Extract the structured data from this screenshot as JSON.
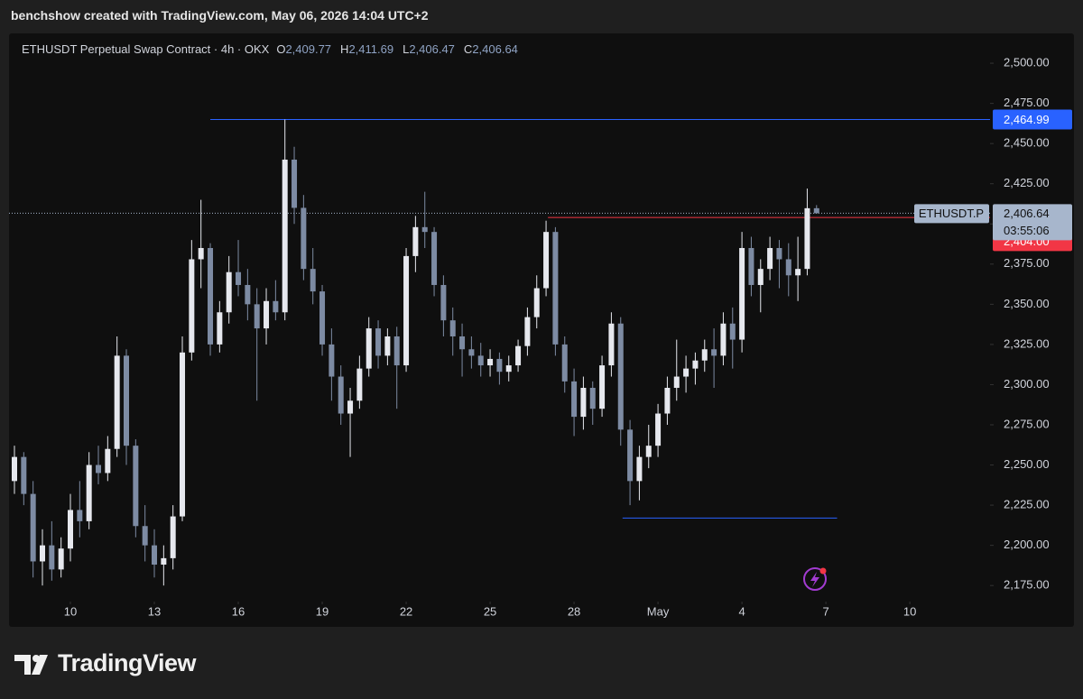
{
  "header": "benchshow created with TradingView.com, May 06, 2026 14:04 UTC+2",
  "brand": "TradingView",
  "chart_data": {
    "type": "candlestick",
    "legend_title": "ETHUSDT Perpetual Swap Contract · 4h · OKX",
    "legend": [
      {
        "key": "O",
        "value": "2,409.77"
      },
      {
        "key": "H",
        "value": "2,411.69"
      },
      {
        "key": "L",
        "value": "2,406.47"
      },
      {
        "key": "C",
        "value": "2,406.64"
      }
    ],
    "up_color": "#e6e8ee",
    "down_color": "#7d8ba3",
    "x": [
      0,
      1,
      2,
      3,
      4,
      5,
      6,
      7,
      8,
      9,
      10,
      11,
      12,
      13,
      14,
      15,
      16,
      17,
      18,
      19,
      20,
      21,
      22,
      23,
      24,
      25,
      26,
      27,
      28,
      29,
      30,
      31,
      32,
      33,
      34,
      35,
      36,
      37,
      38,
      39,
      40,
      41,
      42,
      43,
      44,
      45,
      46,
      47,
      48,
      49,
      50,
      51,
      52,
      53,
      54,
      55,
      56,
      57,
      58,
      59,
      60,
      61,
      62,
      63,
      64,
      65,
      66,
      67,
      68,
      69,
      70,
      71,
      72,
      73,
      74,
      75,
      76,
      77,
      78,
      79,
      80,
      81,
      82,
      83,
      84,
      85,
      86
    ],
    "open": [
      2240,
      2255,
      2232,
      2190,
      2200,
      2185,
      2198,
      2222,
      2215,
      2250,
      2245,
      2260,
      2318,
      2262,
      2212,
      2200,
      2188,
      2192,
      2218,
      2320,
      2378,
      2385,
      2325,
      2345,
      2370,
      2362,
      2350,
      2335,
      2352,
      2345,
      2440,
      2410,
      2372,
      2358,
      2325,
      2305,
      2282,
      2290,
      2310,
      2335,
      2318,
      2330,
      2312,
      2380,
      2398,
      2395,
      2362,
      2340,
      2330,
      2322,
      2318,
      2312,
      2316,
      2308,
      2312,
      2324,
      2342,
      2360,
      2395,
      2325,
      2302,
      2280,
      2298,
      2285,
      2312,
      2338,
      2272,
      2240,
      2255,
      2262,
      2282,
      2298,
      2305,
      2310,
      2315,
      2322,
      2318,
      2338,
      2328,
      2385,
      2362,
      2372,
      2385,
      2378,
      2368,
      2372,
      2409.77
    ],
    "high": [
      2262,
      2258,
      2240,
      2210,
      2215,
      2205,
      2232,
      2240,
      2258,
      2262,
      2268,
      2330,
      2322,
      2266,
      2225,
      2210,
      2200,
      2225,
      2330,
      2390,
      2415,
      2388,
      2352,
      2380,
      2390,
      2372,
      2360,
      2360,
      2365,
      2465,
      2448,
      2418,
      2385,
      2362,
      2335,
      2312,
      2298,
      2318,
      2342,
      2340,
      2335,
      2336,
      2385,
      2405,
      2420,
      2398,
      2368,
      2348,
      2338,
      2330,
      2326,
      2322,
      2320,
      2318,
      2328,
      2348,
      2368,
      2402,
      2398,
      2330,
      2310,
      2305,
      2302,
      2318,
      2345,
      2342,
      2278,
      2262,
      2275,
      2288,
      2305,
      2328,
      2318,
      2320,
      2328,
      2335,
      2345,
      2348,
      2395,
      2392,
      2378,
      2392,
      2390,
      2388,
      2392,
      2422,
      2411.69
    ],
    "low": [
      2232,
      2225,
      2180,
      2175,
      2178,
      2180,
      2190,
      2205,
      2210,
      2238,
      2240,
      2255,
      2250,
      2205,
      2190,
      2180,
      2175,
      2185,
      2215,
      2315,
      2360,
      2318,
      2320,
      2338,
      2355,
      2340,
      2290,
      2325,
      2340,
      2340,
      2400,
      2365,
      2350,
      2318,
      2290,
      2275,
      2255,
      2285,
      2305,
      2310,
      2312,
      2285,
      2308,
      2370,
      2385,
      2355,
      2330,
      2318,
      2305,
      2310,
      2305,
      2305,
      2300,
      2302,
      2308,
      2318,
      2335,
      2355,
      2318,
      2295,
      2268,
      2272,
      2275,
      2280,
      2305,
      2262,
      2225,
      2228,
      2248,
      2255,
      2275,
      2290,
      2295,
      2300,
      2308,
      2298,
      2312,
      2310,
      2320,
      2355,
      2345,
      2365,
      2360,
      2355,
      2352,
      2368,
      2406.47
    ],
    "close": [
      2255,
      2232,
      2190,
      2200,
      2185,
      2198,
      2222,
      2215,
      2250,
      2245,
      2260,
      2318,
      2262,
      2212,
      2200,
      2188,
      2192,
      2218,
      2320,
      2378,
      2385,
      2325,
      2345,
      2370,
      2362,
      2350,
      2335,
      2352,
      2345,
      2440,
      2410,
      2372,
      2358,
      2325,
      2305,
      2282,
      2290,
      2310,
      2335,
      2318,
      2330,
      2312,
      2380,
      2398,
      2395,
      2362,
      2340,
      2330,
      2322,
      2318,
      2312,
      2316,
      2308,
      2312,
      2324,
      2342,
      2360,
      2395,
      2325,
      2302,
      2280,
      2298,
      2285,
      2312,
      2338,
      2272,
      2240,
      2255,
      2262,
      2282,
      2298,
      2305,
      2310,
      2315,
      2322,
      2318,
      2338,
      2328,
      2385,
      2362,
      2372,
      2385,
      2378,
      2368,
      2372,
      2409.77,
      2406.64
    ],
    "xlim": [
      -0.58,
      104.6
    ],
    "xticks": [
      {
        "value": 6,
        "label": "10"
      },
      {
        "value": 15,
        "label": "13"
      },
      {
        "value": 24,
        "label": "16"
      },
      {
        "value": 33,
        "label": "19"
      },
      {
        "value": 42,
        "label": "22"
      },
      {
        "value": 51,
        "label": "25"
      },
      {
        "value": 60,
        "label": "28"
      },
      {
        "value": 69,
        "label": "May"
      },
      {
        "value": 78,
        "label": "4"
      },
      {
        "value": 87,
        "label": "7"
      },
      {
        "value": 96,
        "label": "10"
      }
    ],
    "ylim": [
      2165,
      2518
    ],
    "yticks": [
      {
        "value": 2175,
        "label": "2,175.00"
      },
      {
        "value": 2200,
        "label": "2,200.00"
      },
      {
        "value": 2225,
        "label": "2,225.00"
      },
      {
        "value": 2250,
        "label": "2,250.00"
      },
      {
        "value": 2275,
        "label": "2,275.00"
      },
      {
        "value": 2300,
        "label": "2,300.00"
      },
      {
        "value": 2325,
        "label": "2,325.00"
      },
      {
        "value": 2350,
        "label": "2,350.00"
      },
      {
        "value": 2375,
        "label": "2,375.00"
      },
      {
        "value": 2400,
        "label": "2,400.00"
      },
      {
        "value": 2425,
        "label": "2,425.00"
      },
      {
        "value": 2450,
        "label": "2,450.00"
      },
      {
        "value": 2475,
        "label": "2,475.00"
      },
      {
        "value": 2500,
        "label": "2,500.00"
      }
    ],
    "levels": [
      {
        "value": 2464.99,
        "label": "2,464.99",
        "color": "#2962ff",
        "from": 21
      },
      {
        "value": 2217,
        "color": "#2962ff",
        "from": 65.2,
        "to": 88.2
      },
      {
        "value": 2404,
        "label": "2,404.00",
        "color": "#f23645",
        "from": 57.2
      }
    ],
    "last_price": {
      "value": 2406.64,
      "label": "2,406.64",
      "countdown": "03:55:06",
      "symbol": "ETHUSDT.P",
      "color": "#a7b6cc"
    }
  }
}
